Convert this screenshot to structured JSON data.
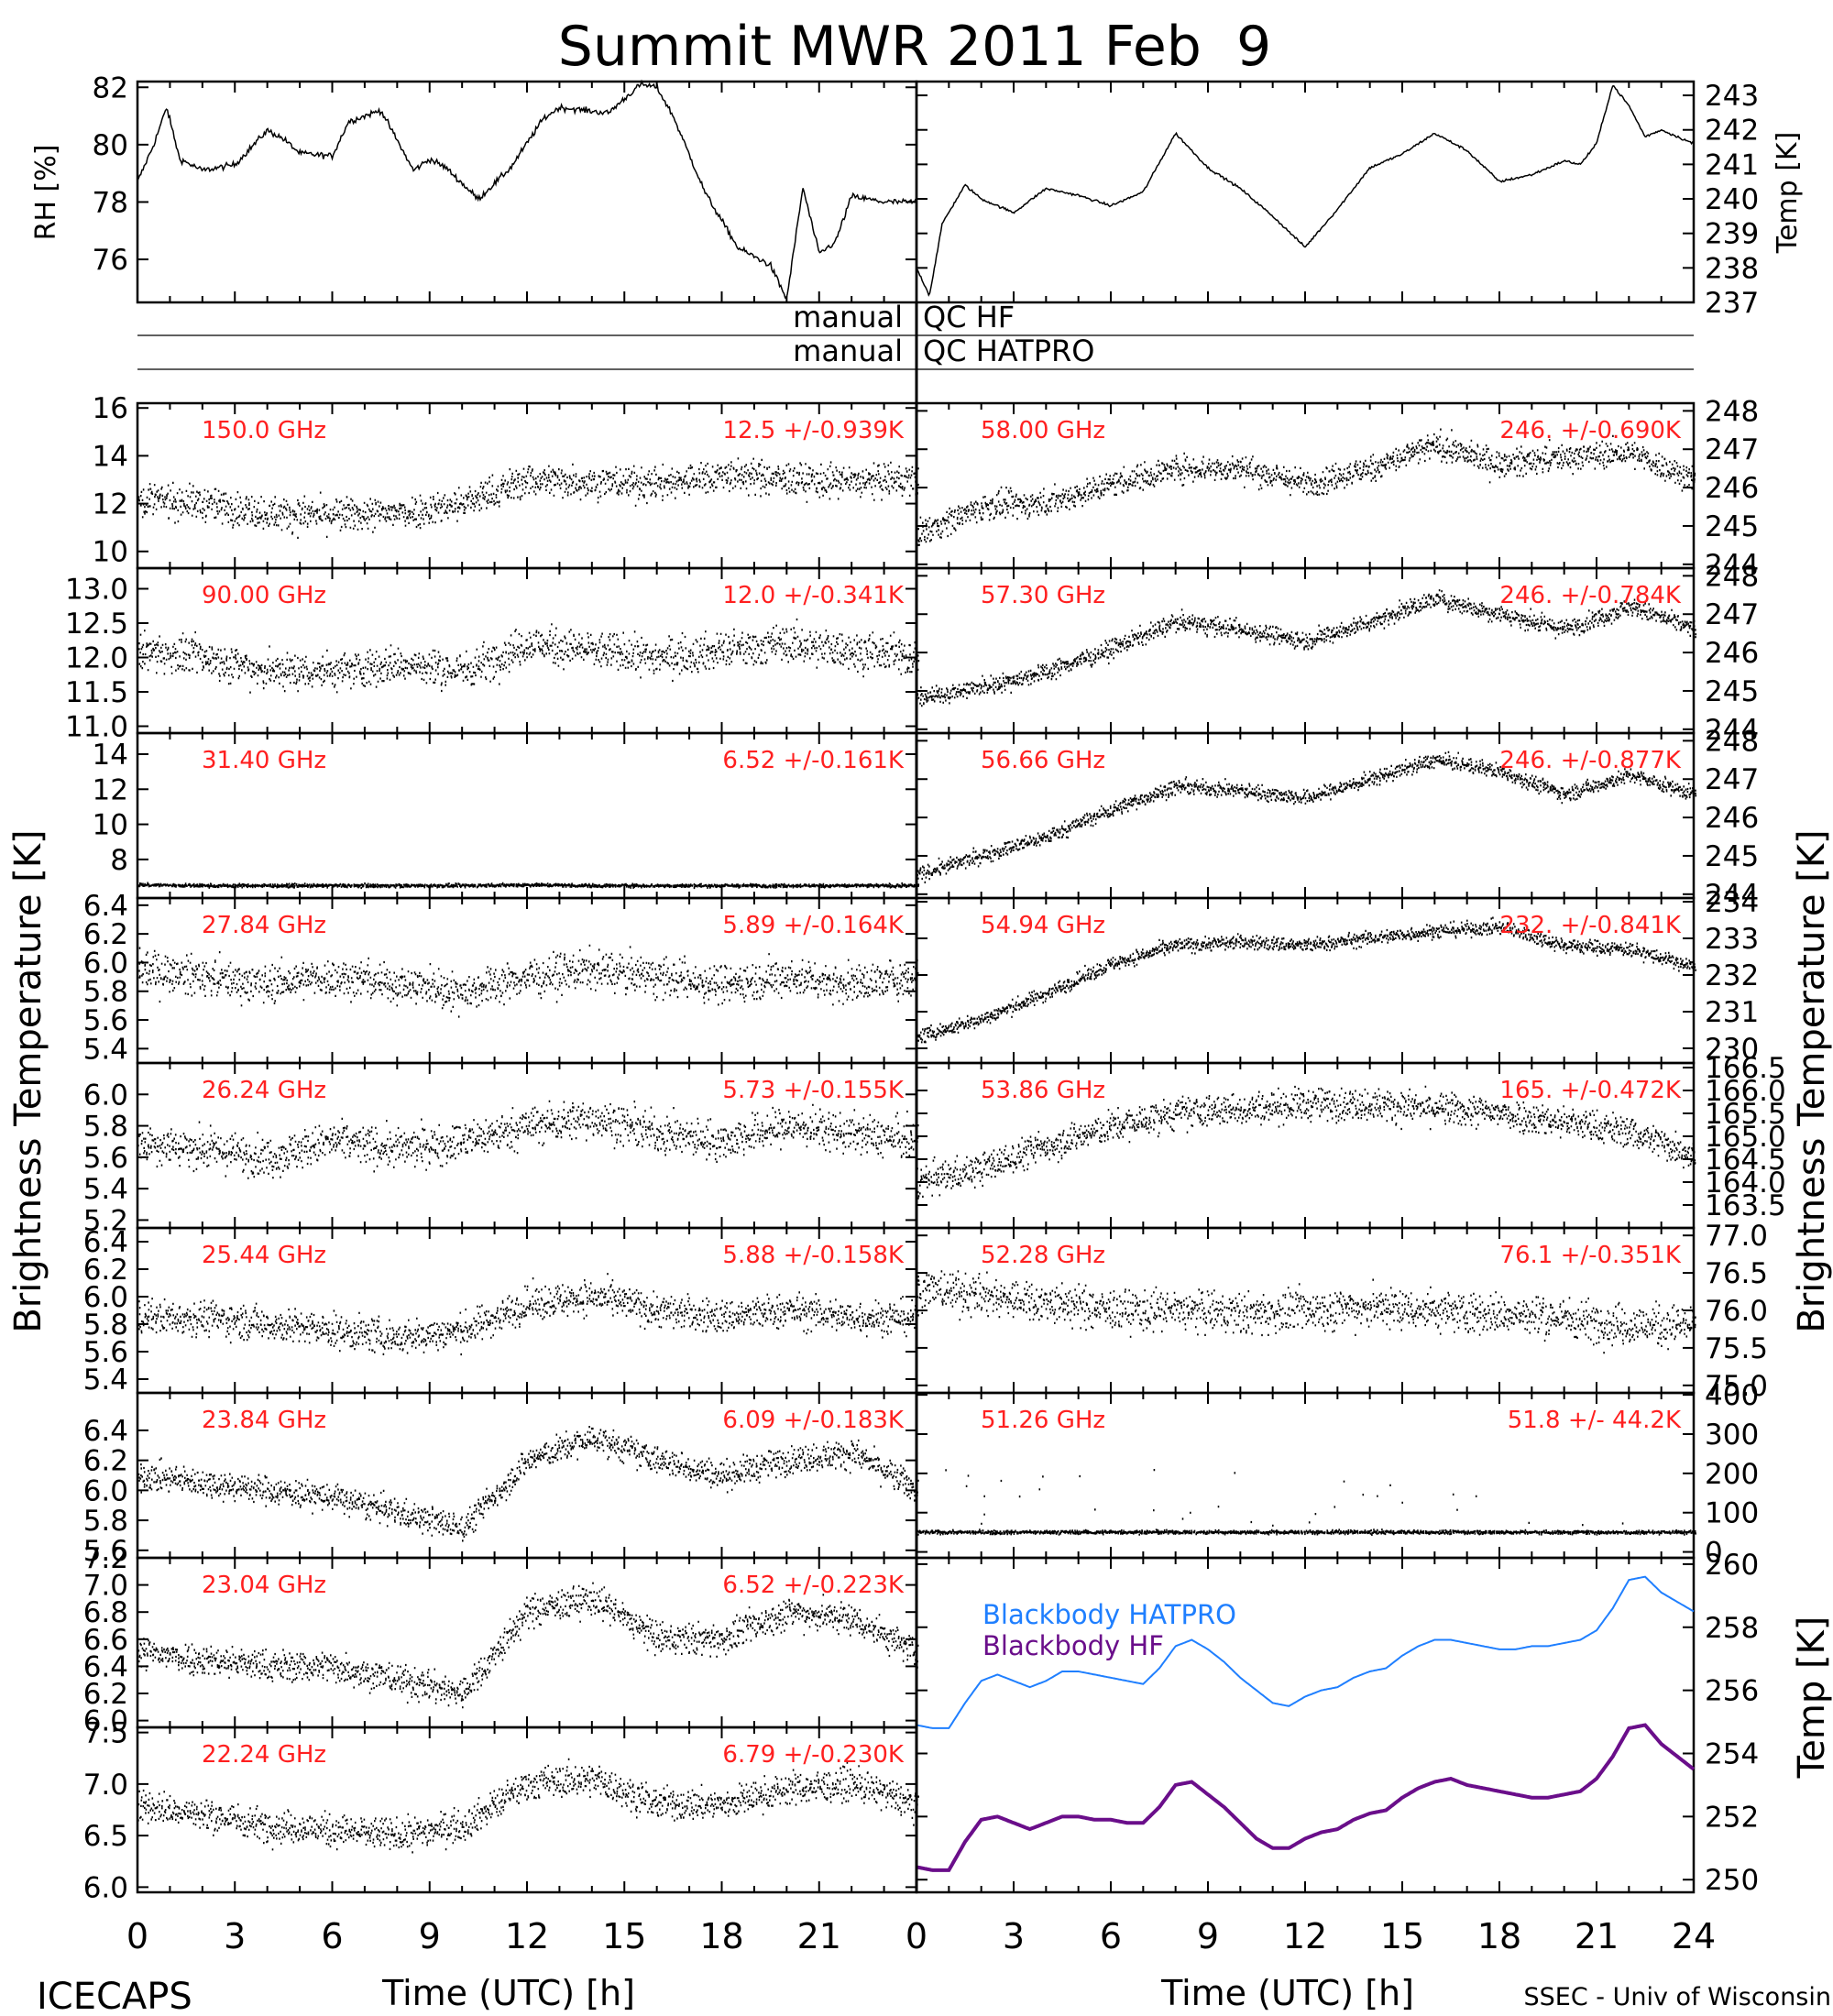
{
  "title": "Summit MWR 2011 Feb  9",
  "footer_left": "ICECAPS",
  "footer_right": "SSEC - Univ of Wisconsin",
  "left_axis_label": "Brightness Temperature [K]",
  "right_axis_label": "Brightness Temperature [K]",
  "qc_rows": [
    {
      "left": "manual",
      "right": "QC HF"
    },
    {
      "left": "manual",
      "right": "QC HATPRO"
    }
  ],
  "chart_data": [
    {
      "type": "line",
      "id": "rh",
      "ylabel": "RH [%]",
      "side": "left",
      "xlim": [
        0,
        24
      ],
      "ylim": [
        74.5,
        82.2
      ],
      "yticks": [
        76,
        78,
        80,
        82
      ],
      "x": [
        0,
        0.5,
        0.9,
        1.3,
        2,
        3,
        4,
        4.5,
        5,
        6,
        6.5,
        7.5,
        8.5,
        9,
        9.5,
        10.5,
        11.5,
        12.5,
        13,
        14.5,
        15.5,
        16,
        16.5,
        17.5,
        18.5,
        19.5,
        20,
        20.5,
        21,
        21.5,
        22,
        23,
        24
      ],
      "y": [
        78.7,
        80,
        81.3,
        79.5,
        79.1,
        79.3,
        80.5,
        80.2,
        79.7,
        79.6,
        80.8,
        81.2,
        79.1,
        79.5,
        79.2,
        78.1,
        79.2,
        80.9,
        81.3,
        81.1,
        82.1,
        82,
        81,
        78.3,
        76.4,
        75.8,
        74.6,
        78.5,
        76.2,
        76.6,
        78.2,
        78,
        78
      ],
      "noise": 0.15
    },
    {
      "type": "line",
      "id": "temp",
      "ylabel": "Temp [K]",
      "side": "right",
      "xlim": [
        0,
        24
      ],
      "ylim": [
        237,
        243.4
      ],
      "yticks": [
        237,
        238,
        239,
        240,
        241,
        242,
        243
      ],
      "x": [
        0,
        0.4,
        0.8,
        1.5,
        2,
        3,
        4,
        5,
        6,
        7,
        8,
        9,
        10,
        11,
        12,
        13,
        14,
        15,
        16,
        17,
        18,
        19,
        20,
        20.5,
        21,
        21.5,
        22,
        22.5,
        23,
        24
      ],
      "y": [
        238,
        237.2,
        239.3,
        240.4,
        240,
        239.6,
        240.3,
        240.1,
        239.8,
        240.2,
        241.9,
        240.9,
        240.3,
        239.5,
        238.6,
        239.7,
        240.9,
        241.3,
        241.9,
        241.4,
        240.5,
        240.7,
        241.1,
        241,
        241.6,
        243.3,
        242.7,
        241.8,
        242,
        241.6
      ],
      "noise": 0.05
    }
  ],
  "channels_left": [
    {
      "freq": "150.0 GHz",
      "stats": "12.5 +/-0.939K",
      "ylim": [
        9.3,
        16.2
      ],
      "yticks": [
        10,
        12,
        14,
        16
      ],
      "trend": [
        12.2,
        12,
        11.6,
        11.5,
        11.6,
        12,
        13,
        12.9,
        12.8,
        13.2,
        13,
        12.9,
        13
      ],
      "noise": 0.9
    },
    {
      "freq": "90.00 GHz",
      "stats": "12.0 +/-0.341K",
      "ylim": [
        10.9,
        13.3
      ],
      "yticks": [
        11.0,
        11.5,
        12.0,
        12.5,
        13.0
      ],
      "trend": [
        12.1,
        12,
        11.8,
        11.8,
        11.9,
        11.8,
        12.2,
        12.1,
        12,
        12.1,
        12.2,
        12.1,
        12
      ],
      "noise": 0.35
    },
    {
      "freq": "31.40 GHz",
      "stats": "6.52 +/-0.161K",
      "ylim": [
        5.8,
        15.2
      ],
      "yticks": [
        8,
        10,
        12,
        14
      ],
      "trend": [
        6.55,
        6.5,
        6.5,
        6.5,
        6.5,
        6.5,
        6.55,
        6.5,
        6.5,
        6.5,
        6.5,
        6.5,
        6.5
      ],
      "noise": 0.12
    },
    {
      "freq": "27.84 GHz",
      "stats": "5.89 +/-0.164K",
      "ylim": [
        5.3,
        6.45
      ],
      "yticks": [
        5.4,
        5.6,
        5.8,
        6.0,
        6.2,
        6.4
      ],
      "trend": [
        5.95,
        5.9,
        5.85,
        5.9,
        5.85,
        5.8,
        5.9,
        5.95,
        5.9,
        5.85,
        5.9,
        5.85,
        5.9
      ],
      "noise": 0.17
    },
    {
      "freq": "26.24 GHz",
      "stats": "5.73 +/-0.155K",
      "ylim": [
        5.15,
        6.2
      ],
      "yticks": [
        5.2,
        5.4,
        5.6,
        5.8,
        6.0
      ],
      "trend": [
        5.7,
        5.65,
        5.6,
        5.7,
        5.65,
        5.7,
        5.8,
        5.85,
        5.75,
        5.7,
        5.8,
        5.75,
        5.7
      ],
      "noise": 0.16
    },
    {
      "freq": "25.44 GHz",
      "stats": "5.88 +/-0.158K",
      "ylim": [
        5.3,
        6.5
      ],
      "yticks": [
        5.4,
        5.6,
        5.8,
        6.0,
        6.2,
        6.4
      ],
      "trend": [
        5.85,
        5.85,
        5.8,
        5.75,
        5.7,
        5.75,
        5.95,
        6.0,
        5.9,
        5.85,
        5.9,
        5.85,
        5.85
      ],
      "noise": 0.16
    },
    {
      "freq": "23.84 GHz",
      "stats": "6.09 +/-0.183K",
      "ylim": [
        5.55,
        6.65
      ],
      "yticks": [
        5.6,
        5.8,
        6.0,
        6.2,
        6.4
      ],
      "trend": [
        6.1,
        6.05,
        6.0,
        5.95,
        5.85,
        5.75,
        6.2,
        6.35,
        6.2,
        6.1,
        6.2,
        6.25,
        6.0
      ],
      "noise": 0.12
    },
    {
      "freq": "23.04 GHz",
      "stats": "6.52 +/-0.223K",
      "ylim": [
        5.95,
        7.2
      ],
      "yticks": [
        6.0,
        6.2,
        6.4,
        6.6,
        6.8,
        7.0,
        7.2
      ],
      "trend": [
        6.5,
        6.45,
        6.4,
        6.4,
        6.3,
        6.2,
        6.8,
        6.9,
        6.6,
        6.6,
        6.8,
        6.75,
        6.5
      ],
      "noise": 0.15
    },
    {
      "freq": "22.24 GHz",
      "stats": "6.79 +/-0.230K",
      "ylim": [
        5.95,
        7.55
      ],
      "yticks": [
        6.0,
        6.5,
        7.0,
        7.5
      ],
      "trend": [
        6.8,
        6.7,
        6.6,
        6.55,
        6.5,
        6.6,
        7.0,
        7.05,
        6.8,
        6.8,
        6.95,
        7.0,
        6.8
      ],
      "noise": 0.2
    }
  ],
  "channels_right": [
    {
      "freq": "58.00 GHz",
      "stats": "246. +/-0.690K",
      "ylim": [
        243.9,
        248.2
      ],
      "yticks": [
        244,
        245,
        246,
        247,
        248
      ],
      "trend": [
        244.8,
        245.5,
        245.6,
        246.1,
        246.5,
        246.5,
        246.1,
        246.5,
        247.1,
        246.6,
        246.8,
        246.9,
        246.2
      ],
      "noise": 0.45
    },
    {
      "freq": "57.30 GHz",
      "stats": "246. +/-0.784K",
      "ylim": [
        243.9,
        248.2
      ],
      "yticks": [
        244,
        245,
        246,
        247,
        248
      ],
      "trend": [
        244.8,
        245.1,
        245.5,
        246.1,
        246.8,
        246.6,
        246.3,
        246.8,
        247.4,
        247,
        246.6,
        247.2,
        246.6
      ],
      "noise": 0.3
    },
    {
      "freq": "56.66 GHz",
      "stats": "246. +/-0.877K",
      "ylim": [
        243.9,
        248.2
      ],
      "yticks": [
        244,
        245,
        246,
        247,
        248
      ],
      "trend": [
        244.5,
        245,
        245.5,
        246.2,
        246.8,
        246.7,
        246.5,
        247,
        247.5,
        247.2,
        246.6,
        247.1,
        246.6
      ],
      "noise": 0.25
    },
    {
      "freq": "54.94 GHz",
      "stats": "232. +/-0.841K",
      "ylim": [
        229.6,
        234.1
      ],
      "yticks": [
        230,
        231,
        232,
        233,
        234
      ],
      "trend": [
        230.3,
        230.8,
        231.5,
        232.3,
        232.8,
        232.9,
        232.8,
        233,
        233.2,
        233.3,
        232.8,
        232.7,
        232.2
      ],
      "noise": 0.25
    },
    {
      "freq": "53.86 GHz",
      "stats": "165. +/-0.472K",
      "ylim": [
        163,
        166.6
      ],
      "yticks": [
        163.5,
        164.0,
        164.5,
        165.0,
        165.5,
        166.0,
        166.5
      ],
      "trend": [
        164,
        164.3,
        164.8,
        165.2,
        165.5,
        165.6,
        165.7,
        165.7,
        165.6,
        165.5,
        165.3,
        165.1,
        164.6
      ],
      "noise": 0.45
    },
    {
      "freq": "52.28 GHz",
      "stats": "76.1 +/-0.351K",
      "ylim": [
        74.9,
        77.1
      ],
      "yticks": [
        75.0,
        75.5,
        76.0,
        76.5,
        77.0
      ],
      "trend": [
        76.3,
        76.2,
        76.1,
        76.0,
        76.0,
        75.95,
        76.0,
        76.05,
        76.0,
        75.95,
        75.9,
        75.8,
        75.8
      ],
      "noise": 0.35
    },
    {
      "freq": "51.26 GHz",
      "stats": "51.8 +/- 44.2K",
      "ylim": [
        -15,
        405
      ],
      "yticks": [
        0,
        100,
        200,
        300,
        400
      ],
      "trend": [
        50,
        50,
        50,
        50,
        50,
        50,
        50,
        50,
        50,
        50,
        50,
        50,
        50
      ],
      "noise": 6,
      "spikes": true
    }
  ],
  "blackbody": {
    "ylabel": "Temp [K]",
    "ylim": [
      249.6,
      260.2
    ],
    "yticks": [
      250,
      252,
      254,
      256,
      258,
      260
    ],
    "series": [
      {
        "name": "Blackbody HATPRO",
        "color": "#1f7fff",
        "x": [
          0,
          0.5,
          1,
          1.5,
          2,
          2.5,
          3,
          3.5,
          4,
          4.5,
          5,
          5.5,
          6,
          6.5,
          7,
          7.5,
          8,
          8.5,
          9,
          9.5,
          10,
          10.5,
          11,
          11.5,
          12,
          12.5,
          13,
          13.5,
          14,
          14.5,
          15,
          15.5,
          16,
          16.5,
          17,
          17.5,
          18,
          18.5,
          19,
          19.5,
          20,
          20.5,
          21,
          21.5,
          22,
          22.5,
          23,
          23.5,
          24
        ],
        "y": [
          254.9,
          254.8,
          254.8,
          255.6,
          256.3,
          256.5,
          256.3,
          256.1,
          256.3,
          256.6,
          256.6,
          256.5,
          256.4,
          256.3,
          256.2,
          256.7,
          257.4,
          257.6,
          257.3,
          256.9,
          256.4,
          256.0,
          255.6,
          255.5,
          255.8,
          256.0,
          256.1,
          256.4,
          256.6,
          256.7,
          257.1,
          257.4,
          257.6,
          257.6,
          257.5,
          257.4,
          257.3,
          257.3,
          257.4,
          257.4,
          257.5,
          257.6,
          257.9,
          258.6,
          259.5,
          259.6,
          259.1,
          258.8,
          258.5
        ]
      },
      {
        "name": "Blackbody HF",
        "color": "#6a0e8a",
        "x": [
          0,
          0.5,
          1,
          1.5,
          2,
          2.5,
          3,
          3.5,
          4,
          4.5,
          5,
          5.5,
          6,
          6.5,
          7,
          7.5,
          8,
          8.5,
          9,
          9.5,
          10,
          10.5,
          11,
          11.5,
          12,
          12.5,
          13,
          13.5,
          14,
          14.5,
          15,
          15.5,
          16,
          16.5,
          17,
          17.5,
          18,
          18.5,
          19,
          19.5,
          20,
          20.5,
          21,
          21.5,
          22,
          22.5,
          23,
          23.5,
          24
        ],
        "y": [
          250.4,
          250.3,
          250.3,
          251.2,
          251.9,
          252.0,
          251.8,
          251.6,
          251.8,
          252.0,
          252.0,
          251.9,
          251.9,
          251.8,
          251.8,
          252.3,
          253.0,
          253.1,
          252.7,
          252.3,
          251.8,
          251.3,
          251.0,
          251.0,
          251.3,
          251.5,
          251.6,
          251.9,
          252.1,
          252.2,
          252.6,
          252.9,
          253.1,
          253.2,
          253.0,
          252.9,
          252.8,
          252.7,
          252.6,
          252.6,
          252.7,
          252.8,
          253.2,
          253.9,
          254.8,
          254.9,
          254.3,
          253.9,
          253.5
        ]
      }
    ]
  },
  "xaxis": {
    "label": "Time (UTC) [h]",
    "ticks": [
      0,
      3,
      6,
      9,
      12,
      15,
      18,
      21,
      24
    ],
    "left_ticks": [
      0,
      3,
      6,
      9,
      12,
      15,
      18,
      21
    ]
  }
}
